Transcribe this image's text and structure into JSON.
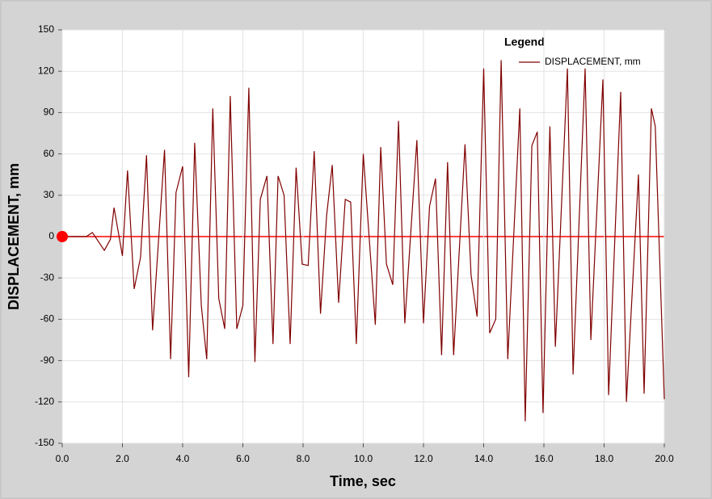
{
  "chart_data": {
    "type": "line",
    "xlabel": "Time,  sec",
    "ylabel": "DISPLACEMENT,  mm",
    "legend_title": "Legend",
    "legend": "top-right",
    "grid": true,
    "xlim": [
      0,
      20
    ],
    "ylim": [
      -150,
      150
    ],
    "xticks": [
      {
        "value": 0,
        "label": "0.0"
      },
      {
        "value": 2,
        "label": "2.0"
      },
      {
        "value": 4,
        "label": "4.0"
      },
      {
        "value": 6,
        "label": "6.0"
      },
      {
        "value": 8,
        "label": "8.0"
      },
      {
        "value": 10,
        "label": "10.0"
      },
      {
        "value": 12,
        "label": "12.0"
      },
      {
        "value": 14,
        "label": "14.0"
      },
      {
        "value": 16,
        "label": "16.0"
      },
      {
        "value": 18,
        "label": "18.0"
      },
      {
        "value": 20,
        "label": "20.0"
      }
    ],
    "yticks": [
      150,
      120,
      90,
      60,
      30,
      0,
      -30,
      -60,
      -90,
      -120,
      -150
    ],
    "x": [
      0,
      0.8,
      1.0,
      1.4,
      1.6,
      1.72,
      2.0,
      2.17,
      2.39,
      2.6,
      2.8,
      3.0,
      3.4,
      3.6,
      3.78,
      4.0,
      4.2,
      4.4,
      4.62,
      4.8,
      5.0,
      5.2,
      5.4,
      5.58,
      5.8,
      6.0,
      6.2,
      6.4,
      6.58,
      6.8,
      7.0,
      7.17,
      7.37,
      7.57,
      7.77,
      7.97,
      8.17,
      8.37,
      8.58,
      8.78,
      8.97,
      9.18,
      9.4,
      9.58,
      9.77,
      10.0,
      10.4,
      10.58,
      10.77,
      10.98,
      11.17,
      11.38,
      11.78,
      12.0,
      12.2,
      12.4,
      12.6,
      12.8,
      13.0,
      13.38,
      13.58,
      13.78,
      14.0,
      14.2,
      14.4,
      14.58,
      14.8,
      15.2,
      15.38,
      15.6,
      15.78,
      15.97,
      16.2,
      16.38,
      16.78,
      16.97,
      17.37,
      17.56,
      17.96,
      18.15,
      18.55,
      18.74,
      19.14,
      19.33,
      19.57,
      19.7,
      20.0
    ],
    "series": [
      {
        "name": "DISPLACEMENT, mm",
        "color": "#800000",
        "marker_color": "#ff0000",
        "values": [
          0,
          0,
          3,
          -10,
          -2,
          21,
          -14,
          48,
          -38,
          -15,
          59,
          -68,
          63,
          -89,
          32,
          51,
          -102,
          68,
          -50,
          -89,
          93,
          -45,
          -67,
          102,
          -67,
          -50,
          108,
          -91,
          27,
          44,
          -78,
          44,
          30,
          -78,
          50,
          -20,
          -21,
          62,
          -56,
          15,
          52,
          -48,
          27,
          25,
          -78,
          60,
          -64,
          65,
          -20,
          -35,
          84,
          -63,
          70,
          -63,
          22,
          42,
          -86,
          54,
          -86,
          67,
          -28,
          -58,
          122,
          -70,
          -60,
          128,
          -89,
          93,
          -134,
          66,
          76,
          -128,
          80,
          -80,
          122,
          -100,
          122,
          -75,
          114,
          -115,
          105,
          -120,
          45,
          -114,
          93,
          80,
          -118
        ]
      }
    ]
  }
}
